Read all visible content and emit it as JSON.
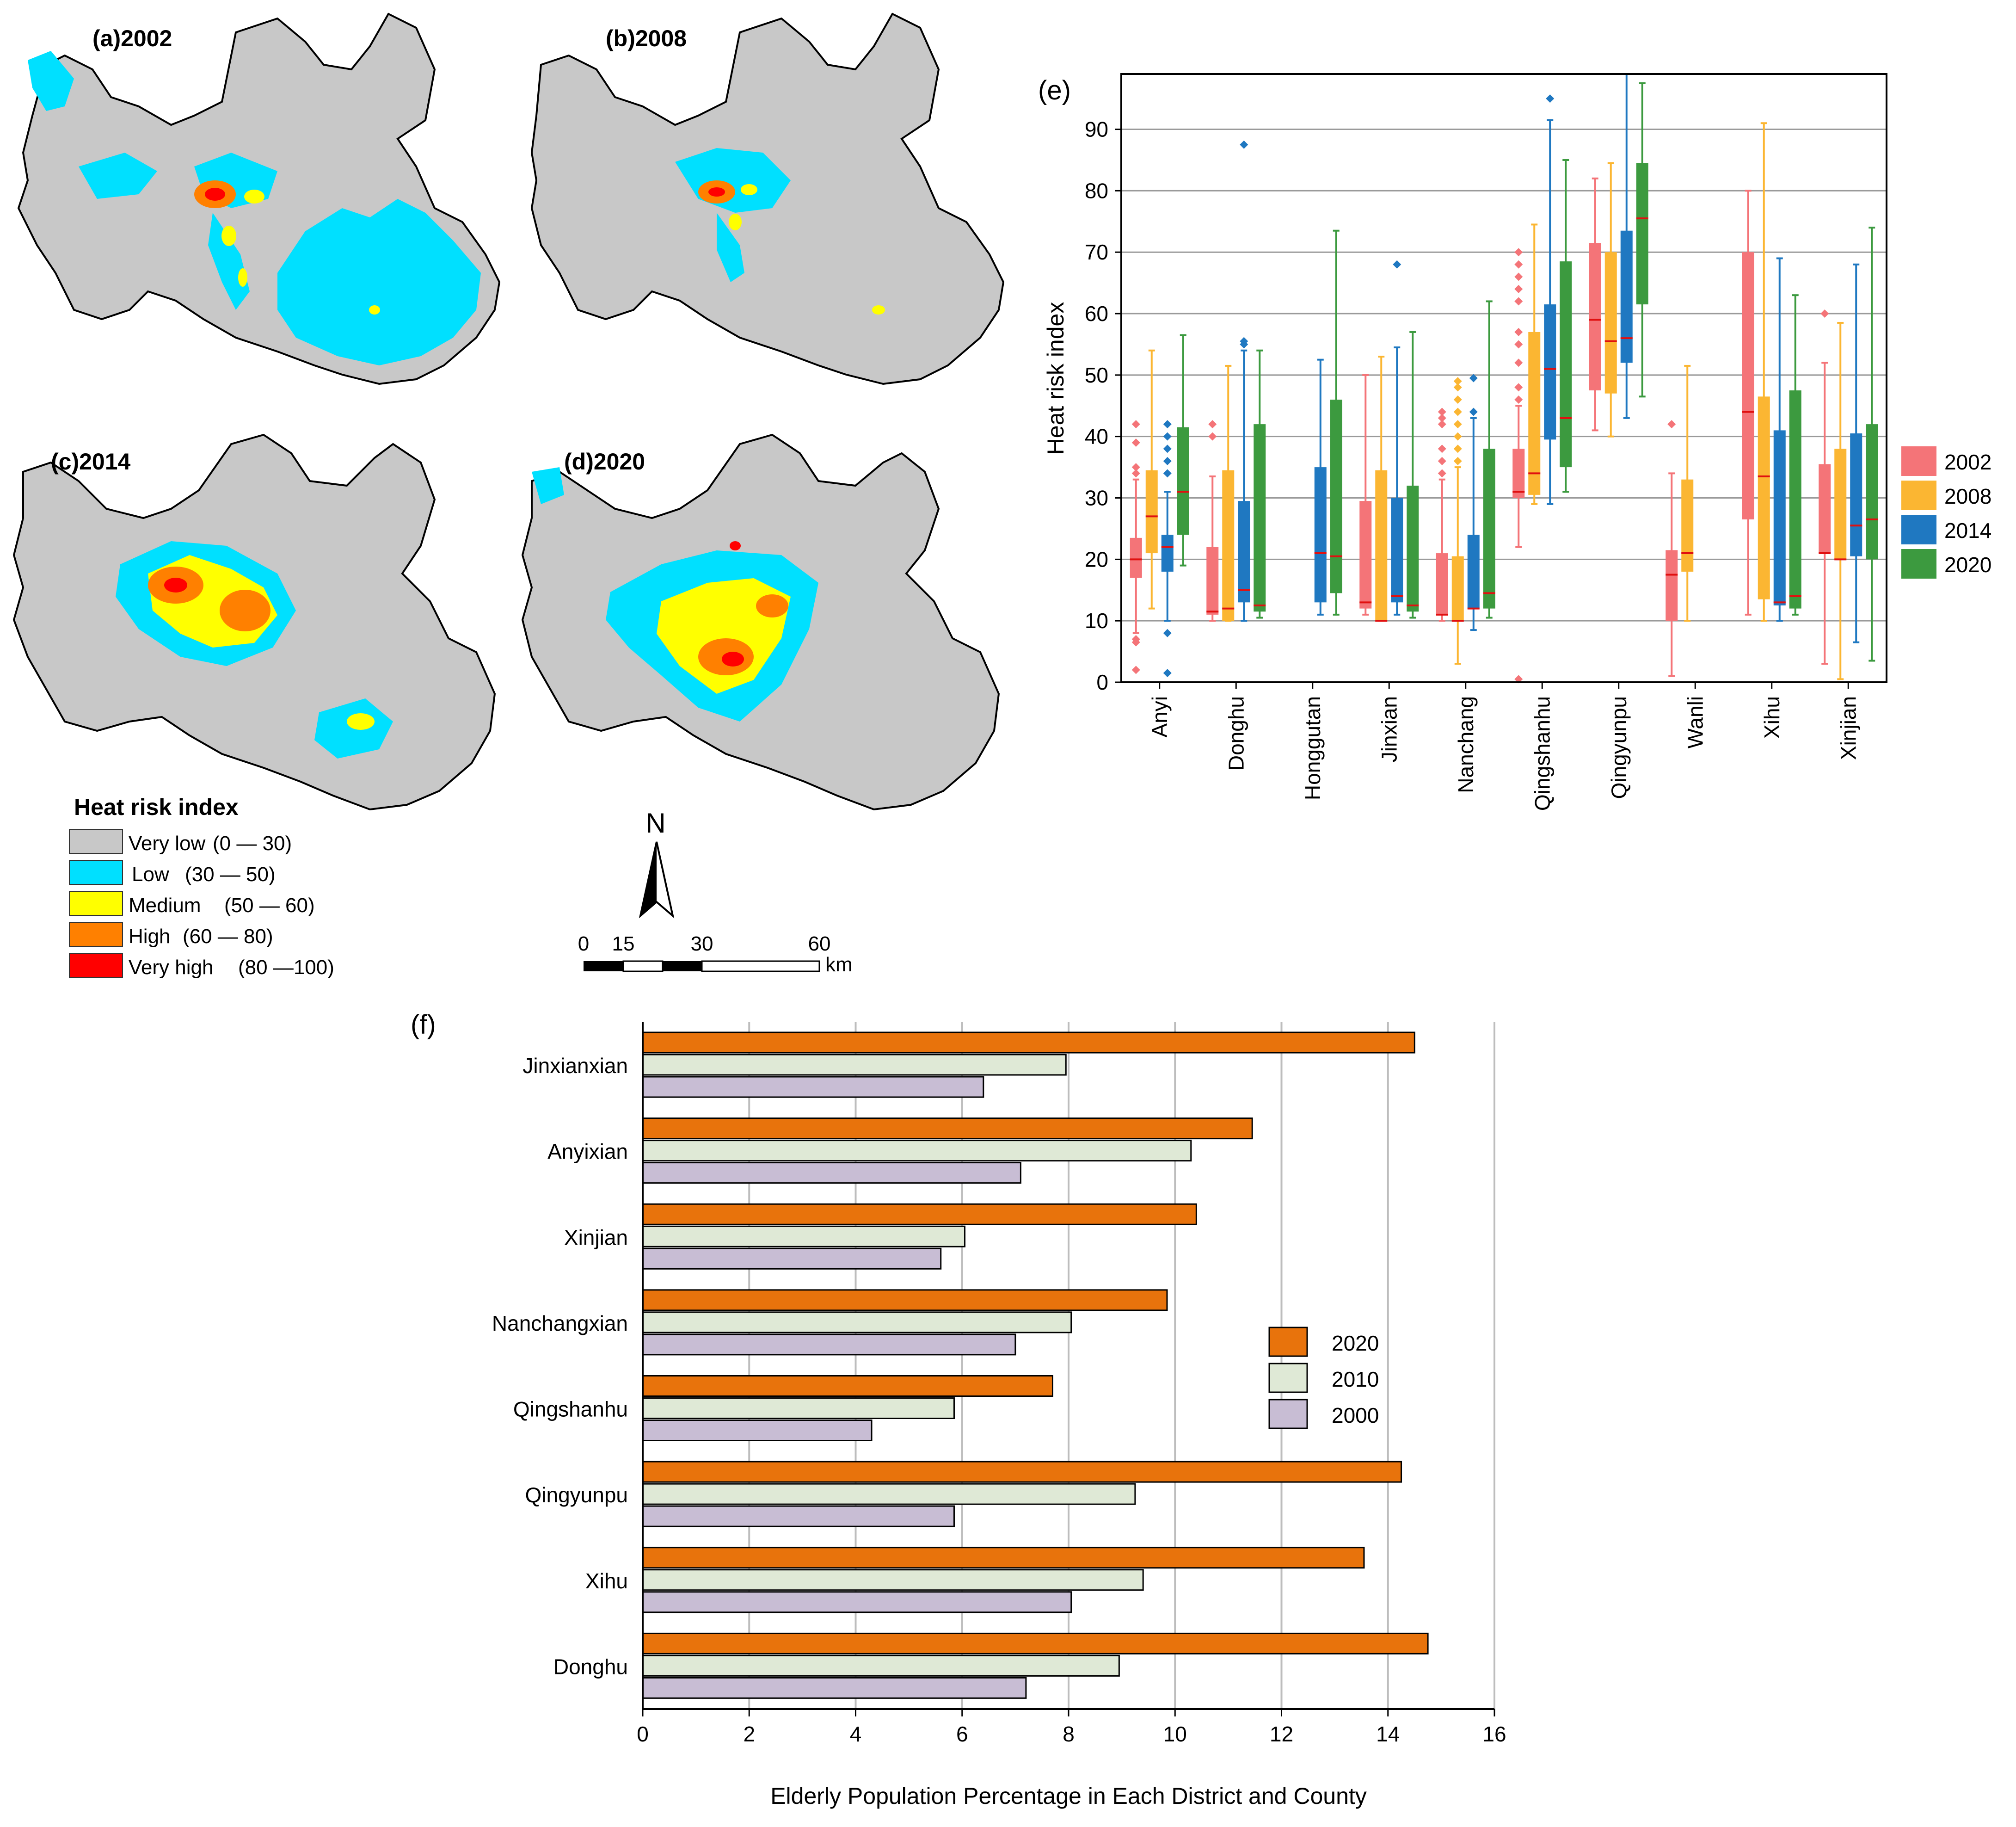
{
  "maps": {
    "panels": [
      {
        "label": "(a)2002"
      },
      {
        "label": "(b)2008"
      },
      {
        "label": "(c)2014"
      },
      {
        "label": "(d)2020"
      }
    ],
    "legend": {
      "title": "Heat risk index",
      "items": [
        {
          "label": "Very low",
          "range": "(0 — 30)",
          "color": "#c8c8c8"
        },
        {
          "label": "Low",
          "range": "(30 — 50)",
          "color": "#00e0ff"
        },
        {
          "label": "Medium",
          "range": "(50 — 60)",
          "color": "#ffff00"
        },
        {
          "label": "High",
          "range": "(60 — 80)",
          "color": "#ff8000"
        },
        {
          "label": "Very high",
          "range": "(80 —100)",
          "color": "#ff0000"
        }
      ]
    },
    "north_label": "N",
    "scale": {
      "ticks": [
        "0",
        "15",
        "30",
        "60"
      ],
      "unit": "km"
    }
  },
  "chart_data": [
    {
      "type": "box",
      "panel_label": "(e)",
      "ylabel": "Heat risk index",
      "ylim": [
        0,
        99
      ],
      "yticks": [
        0,
        10,
        20,
        30,
        40,
        50,
        60,
        70,
        80,
        90
      ],
      "grid": true,
      "legend_position": "right",
      "categories": [
        "Anyi",
        "Donghu",
        "Honggutan",
        "Jinxian",
        "Nanchang",
        "Qingshanhu",
        "Qingyunpu",
        "Wanli",
        "Xihu",
        "Xinjian"
      ],
      "series": [
        {
          "name": "2002",
          "color": "#f47478",
          "boxes": [
            {
              "min": 8,
              "q1": 17,
              "median": 20,
              "q3": 23.5,
              "max": 33,
              "outliers": [
                2,
                6.5,
                7,
                34,
                35,
                39,
                42
              ]
            },
            {
              "min": 10,
              "q1": 11,
              "median": 11.5,
              "q3": 22,
              "max": 33.5,
              "outliers": [
                40,
                42
              ]
            },
            null,
            {
              "min": 11,
              "q1": 12,
              "median": 13,
              "q3": 29.5,
              "max": 50,
              "outliers": []
            },
            {
              "min": 10,
              "q1": 11,
              "median": 11,
              "q3": 21,
              "max": 33,
              "outliers": [
                34,
                36,
                38,
                42,
                43,
                44
              ]
            },
            {
              "min": 22,
              "q1": 30,
              "median": 31,
              "q3": 38,
              "max": 45,
              "outliers": [
                0.5,
                46,
                48,
                52,
                55,
                57,
                62,
                64,
                66,
                68,
                70
              ]
            },
            {
              "min": 41,
              "q1": 47.5,
              "median": 59,
              "q3": 71.5,
              "max": 82,
              "outliers": []
            },
            {
              "min": 1,
              "q1": 10,
              "median": 17.5,
              "q3": 21.5,
              "max": 34,
              "outliers": [
                42
              ]
            },
            {
              "min": 11,
              "q1": 26.5,
              "median": 44,
              "q3": 70,
              "max": 80,
              "outliers": []
            },
            {
              "min": 3,
              "q1": 21,
              "median": 21,
              "q3": 35.5,
              "max": 52,
              "outliers": [
                60
              ]
            }
          ]
        },
        {
          "name": "2008",
          "color": "#fbb632",
          "boxes": [
            {
              "min": 12,
              "q1": 21,
              "median": 27,
              "q3": 34.5,
              "max": 54,
              "outliers": []
            },
            {
              "min": 10,
              "q1": 10,
              "median": 12,
              "q3": 34.5,
              "max": 51.5,
              "outliers": []
            },
            null,
            {
              "min": 10,
              "q1": 10,
              "median": 10,
              "q3": 34.5,
              "max": 53,
              "outliers": []
            },
            {
              "min": 3,
              "q1": 10,
              "median": 10,
              "q3": 20.5,
              "max": 35,
              "outliers": [
                36,
                38,
                40,
                42,
                44,
                46,
                48,
                49
              ]
            },
            {
              "min": 29,
              "q1": 30.5,
              "median": 34,
              "q3": 57,
              "max": 74.5,
              "outliers": []
            },
            {
              "min": 40,
              "q1": 47,
              "median": 55.5,
              "q3": 70,
              "max": 84.5,
              "outliers": []
            },
            {
              "min": 10,
              "q1": 18,
              "median": 21,
              "q3": 33,
              "max": 51.5,
              "outliers": []
            },
            {
              "min": 10,
              "q1": 13.5,
              "median": 33.5,
              "q3": 46.5,
              "max": 91,
              "outliers": []
            },
            {
              "min": 0.5,
              "q1": 20,
              "median": 20,
              "q3": 38,
              "max": 58.5,
              "outliers": []
            }
          ]
        },
        {
          "name": "2014",
          "color": "#1f78c1",
          "boxes": [
            {
              "min": 10,
              "q1": 18,
              "median": 22,
              "q3": 24,
              "max": 31,
              "outliers": [
                1.5,
                8,
                34,
                36,
                38,
                40,
                42
              ]
            },
            {
              "min": 10,
              "q1": 13,
              "median": 15,
              "q3": 29.5,
              "max": 54,
              "outliers": [
                55,
                55.5,
                87.5
              ]
            },
            {
              "min": 11,
              "q1": 13,
              "median": 21,
              "q3": 35,
              "max": 52.5,
              "outliers": []
            },
            {
              "min": 11,
              "q1": 13,
              "median": 14,
              "q3": 30,
              "max": 54.5,
              "outliers": [
                68
              ]
            },
            {
              "min": 8.5,
              "q1": 12,
              "median": 12,
              "q3": 24,
              "max": 43,
              "outliers": [
                44,
                49.5
              ]
            },
            {
              "min": 29,
              "q1": 39.5,
              "median": 51,
              "q3": 61.5,
              "max": 91.5,
              "outliers": [
                95
              ]
            },
            {
              "min": 43,
              "q1": 52,
              "median": 56,
              "q3": 73.5,
              "max": 99,
              "outliers": []
            },
            null,
            {
              "min": 10,
              "q1": 12.5,
              "median": 13,
              "q3": 41,
              "max": 69,
              "outliers": []
            },
            {
              "min": 6.5,
              "q1": 20.5,
              "median": 25.5,
              "q3": 40.5,
              "max": 68,
              "outliers": []
            }
          ]
        },
        {
          "name": "2020",
          "color": "#3c9a3f",
          "boxes": [
            {
              "min": 19,
              "q1": 24,
              "median": 31,
              "q3": 41.5,
              "max": 56.5,
              "outliers": []
            },
            {
              "min": 10.5,
              "q1": 11.5,
              "median": 12.5,
              "q3": 42,
              "max": 54,
              "outliers": []
            },
            {
              "min": 11,
              "q1": 14.5,
              "median": 20.5,
              "q3": 46,
              "max": 73.5,
              "outliers": []
            },
            {
              "min": 10.5,
              "q1": 11.5,
              "median": 12.5,
              "q3": 32,
              "max": 57,
              "outliers": []
            },
            {
              "min": 10.5,
              "q1": 12,
              "median": 14.5,
              "q3": 38,
              "max": 62,
              "outliers": []
            },
            {
              "min": 31,
              "q1": 35,
              "median": 43,
              "q3": 68.5,
              "max": 85,
              "outliers": []
            },
            {
              "min": 46.5,
              "q1": 61.5,
              "median": 75.5,
              "q3": 84.5,
              "max": 97.5,
              "outliers": []
            },
            null,
            {
              "min": 11,
              "q1": 12,
              "median": 14,
              "q3": 47.5,
              "max": 63,
              "outliers": []
            },
            {
              "min": 3.5,
              "q1": 20,
              "median": 26.5,
              "q3": 42,
              "max": 74,
              "outliers": []
            }
          ]
        }
      ]
    },
    {
      "type": "bar",
      "orientation": "horizontal",
      "panel_label": "(f)",
      "xlabel": "Elderly Population Percentage in Each District and County",
      "xlim": [
        0,
        16
      ],
      "xticks": [
        0,
        2,
        4,
        6,
        8,
        10,
        12,
        14,
        16
      ],
      "grid": true,
      "legend_position": "center-right",
      "categories": [
        "Jinxianxian",
        "Anyixian",
        "Xinjian",
        "Nanchangxian",
        "Qingshanhu",
        "Qingyunpu",
        "Xihu",
        "Donghu"
      ],
      "series": [
        {
          "name": "2020",
          "color": "#e8730c",
          "values": [
            14.5,
            11.45,
            10.4,
            9.85,
            7.7,
            14.25,
            13.55,
            14.75
          ]
        },
        {
          "name": "2010",
          "color": "#dfe9d6",
          "values": [
            7.95,
            10.3,
            6.05,
            8.05,
            5.85,
            9.25,
            9.4,
            8.95
          ]
        },
        {
          "name": "2000",
          "color": "#c8bdd4",
          "values": [
            6.4,
            7.1,
            5.6,
            7.0,
            4.3,
            5.85,
            8.05,
            7.2
          ]
        }
      ]
    }
  ]
}
